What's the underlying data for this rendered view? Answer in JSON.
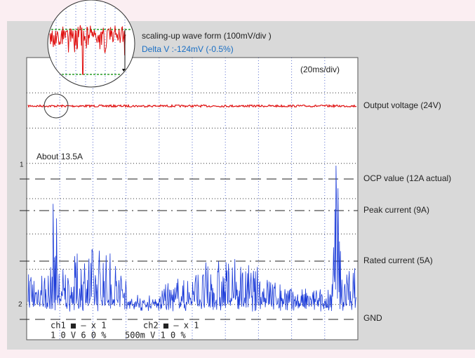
{
  "zoom": {
    "title": "scaling-up wave form (100mV/div )",
    "delta": "Delta V :-124mV (-0.5%)"
  },
  "screen": {
    "timebase": "(20ms/div)",
    "peak_note": "About 13.5A",
    "ch1_marker": "1",
    "ch2_marker": "2",
    "status": {
      "ch1_head": "ch1 ■  —  x 1",
      "ch1_values": "1 0 V   6 0 %",
      "ch2_head": "ch2 ■  —  x 1",
      "ch2_values": "500m V   1 0 %"
    }
  },
  "labels": [
    "Output voltage (24V)",
    "OCP value (12A actual)",
    "Peak current (9A)",
    "Rated current (5A)",
    "GND"
  ]
}
